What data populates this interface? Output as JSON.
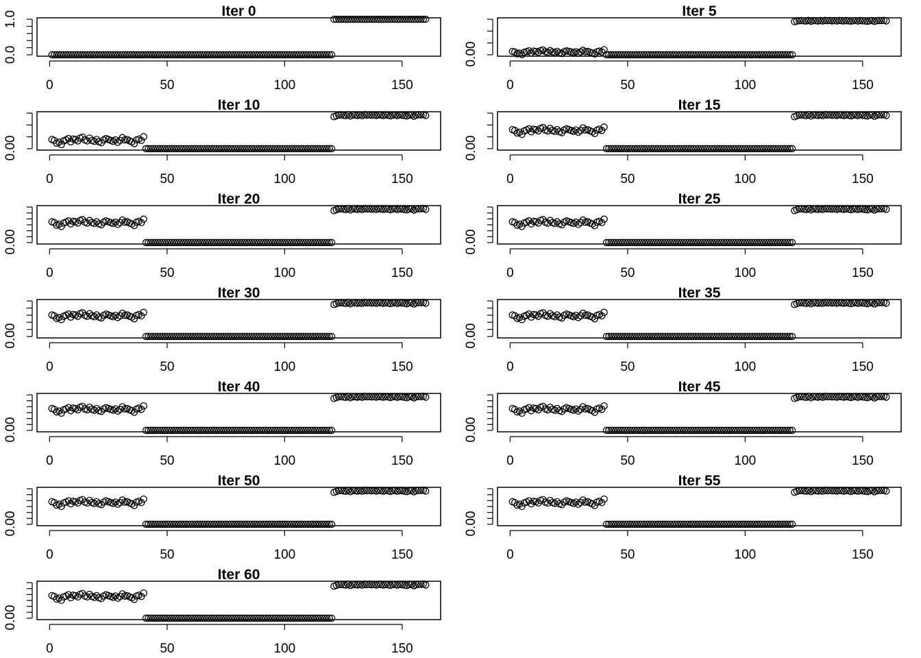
{
  "chart_data": {
    "type": "scatter",
    "layout": "7 rows x 2 columns of small-multiple panels",
    "xlim": [
      1,
      160
    ],
    "xticks": [
      0,
      50,
      100,
      150
    ],
    "x_groups": {
      "group1": [
        1,
        40
      ],
      "group2": [
        41,
        120
      ],
      "group3": [
        121,
        160
      ]
    },
    "note": "y values are normalized to each panel's y range: y = level + amp * pattern[i]; group2 is constant 0",
    "pattern_group1": [
      0.3,
      0.1,
      -0.5,
      -0.3,
      -0.8,
      0,
      0.2,
      0.5,
      -0.2,
      0.4,
      0.3,
      0,
      0.6,
      0.8,
      0.2,
      0,
      0.6,
      0.1,
      -0.1,
      0.3,
      -0.2,
      -0.4,
      0.2,
      0.5,
      0.3,
      0.1,
      -0.1,
      0.2,
      -0.3,
      0.1,
      0.7,
      0.2,
      0.3,
      0,
      -0.2,
      -0.6,
      0.2,
      0.4,
      0.1,
      0.9
    ],
    "pattern_group3": [
      -0.6,
      -0.1,
      0.3,
      0.4,
      0.2,
      0,
      0.5,
      -0.2,
      0.4,
      0.3,
      0.1,
      0.4,
      0,
      0.6,
      0.3,
      0.5,
      0.2,
      0.4,
      0.1,
      0.5,
      0.3,
      0.1,
      0.4,
      0.2,
      -0.1,
      0.3,
      0.4,
      0,
      0.5,
      0.2,
      0.1,
      -0.2,
      0.3,
      0.4,
      -0.3,
      0.3,
      0.5,
      0.4,
      0.6,
      0.1
    ],
    "panels": [
      {
        "title": "Iter 0",
        "ytick_labels": [
          "0.0",
          "1.0"
        ],
        "yticks": 6,
        "g1_level": 0.0,
        "g1_amp": 0.0,
        "g3_level": 1.0,
        "g3_amp": 0.0
      },
      {
        "title": "Iter 5",
        "ytick_labels": [
          "0.00"
        ],
        "yticks": 4,
        "g1_level": 0.07,
        "g1_amp": 0.08,
        "g3_level": 0.95,
        "g3_amp": 0.03
      },
      {
        "title": "Iter 10",
        "ytick_labels": [
          "0.00"
        ],
        "yticks": 4,
        "g1_level": 0.22,
        "g1_amp": 0.13,
        "g3_level": 0.93,
        "g3_amp": 0.05
      },
      {
        "title": "Iter 15",
        "ytick_labels": [
          "0.00"
        ],
        "yticks": 4,
        "g1_level": 0.5,
        "g1_amp": 0.12,
        "g3_level": 0.93,
        "g3_amp": 0.05
      },
      {
        "title": "Iter 20",
        "ytick_labels": [
          "0.00"
        ],
        "yticks": 7,
        "g1_level": 0.55,
        "g1_amp": 0.12,
        "g3_level": 0.93,
        "g3_amp": 0.05
      },
      {
        "title": "Iter 25",
        "ytick_labels": [
          "0.00"
        ],
        "yticks": 7,
        "g1_level": 0.55,
        "g1_amp": 0.12,
        "g3_level": 0.93,
        "g3_amp": 0.05
      },
      {
        "title": "Iter 30",
        "ytick_labels": [
          "0.00"
        ],
        "yticks": 6,
        "g1_level": 0.57,
        "g1_amp": 0.12,
        "g3_level": 0.93,
        "g3_amp": 0.05
      },
      {
        "title": "Iter 35",
        "ytick_labels": [
          "0.00"
        ],
        "yticks": 6,
        "g1_level": 0.57,
        "g1_amp": 0.12,
        "g3_level": 0.93,
        "g3_amp": 0.05
      },
      {
        "title": "Iter 40",
        "ytick_labels": [
          "0.00"
        ],
        "yticks": 7,
        "g1_level": 0.58,
        "g1_amp": 0.12,
        "g3_level": 0.93,
        "g3_amp": 0.05
      },
      {
        "title": "Iter 45",
        "ytick_labels": [
          "0.00"
        ],
        "yticks": 7,
        "g1_level": 0.58,
        "g1_amp": 0.12,
        "g3_level": 0.93,
        "g3_amp": 0.05
      },
      {
        "title": "Iter 50",
        "ytick_labels": [
          "0.00"
        ],
        "yticks": 7,
        "g1_level": 0.6,
        "g1_amp": 0.12,
        "g3_level": 0.93,
        "g3_amp": 0.05
      },
      {
        "title": "Iter 55",
        "ytick_labels": [
          "0.00"
        ],
        "yticks": 7,
        "g1_level": 0.6,
        "g1_amp": 0.12,
        "g3_level": 0.93,
        "g3_amp": 0.05
      },
      {
        "title": "Iter 60",
        "ytick_labels": [
          "0.00"
        ],
        "yticks": 7,
        "g1_level": 0.6,
        "g1_amp": 0.12,
        "g3_level": 0.93,
        "g3_amp": 0.05
      }
    ]
  }
}
